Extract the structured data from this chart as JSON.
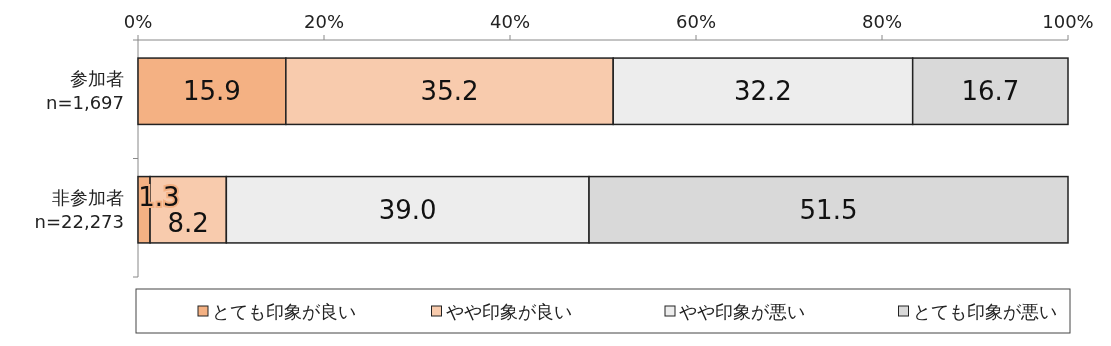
{
  "chart_data": {
    "type": "bar",
    "orientation": "horizontal",
    "stacked": true,
    "categories": [
      "参加者\nn=1,697",
      "非参加者\nn=22,273"
    ],
    "series": [
      {
        "name": "とても印象が良い",
        "color": "#f4b183",
        "values": [
          15.9,
          1.3
        ],
        "value_labels": [
          "15.9",
          "1.3"
        ]
      },
      {
        "name": "やや印象が良い",
        "color": "#f8cbad",
        "values": [
          35.2,
          8.2
        ],
        "value_labels": [
          "35.2",
          "8.2"
        ]
      },
      {
        "name": "やや印象が悪い",
        "color": "#ededed",
        "values": [
          32.2,
          39.0
        ],
        "value_labels": [
          "32.2",
          "39.0"
        ]
      },
      {
        "name": "とても印象が悪い",
        "color": "#d9d9d9",
        "values": [
          16.7,
          51.5
        ],
        "value_labels": [
          "16.7",
          "51.5"
        ]
      }
    ],
    "xlim": [
      0,
      100
    ],
    "xticks": [
      {
        "value": 0,
        "label": "0%"
      },
      {
        "value": 20,
        "label": "20%"
      },
      {
        "value": 40,
        "label": "40%"
      },
      {
        "value": 60,
        "label": "60%"
      },
      {
        "value": 80,
        "label": "80%"
      },
      {
        "value": 100,
        "label": "100%"
      }
    ],
    "grid": false,
    "legend": "bottom"
  }
}
